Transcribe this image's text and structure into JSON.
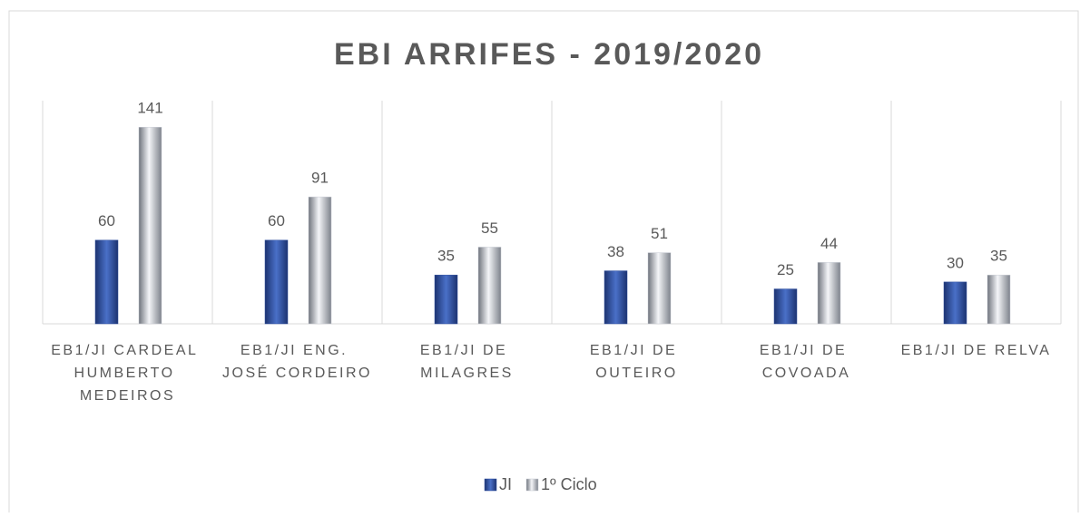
{
  "chart_data": {
    "type": "bar",
    "title": "EBI ARRIFES - 2019/2020",
    "categories": [
      "EB1/JI CARDEAL HUMBERTO MEDEIROS",
      "EB1/JI ENG. JOSÉ CORDEIRO",
      "EB1/JI DE MILAGRES",
      "EB1/JI DE OUTEIRO",
      "EB1/JI DE COVOADA",
      "EB1/JI DE RELVA"
    ],
    "series": [
      {
        "name": "JI",
        "color": "#2f4f9f",
        "values": [
          60,
          60,
          35,
          38,
          25,
          30
        ]
      },
      {
        "name": "1º Ciclo",
        "color": "#c8ccd4",
        "values": [
          141,
          91,
          55,
          51,
          44,
          35
        ]
      }
    ],
    "ylim": [
      0,
      160
    ],
    "legend": "bottom"
  }
}
